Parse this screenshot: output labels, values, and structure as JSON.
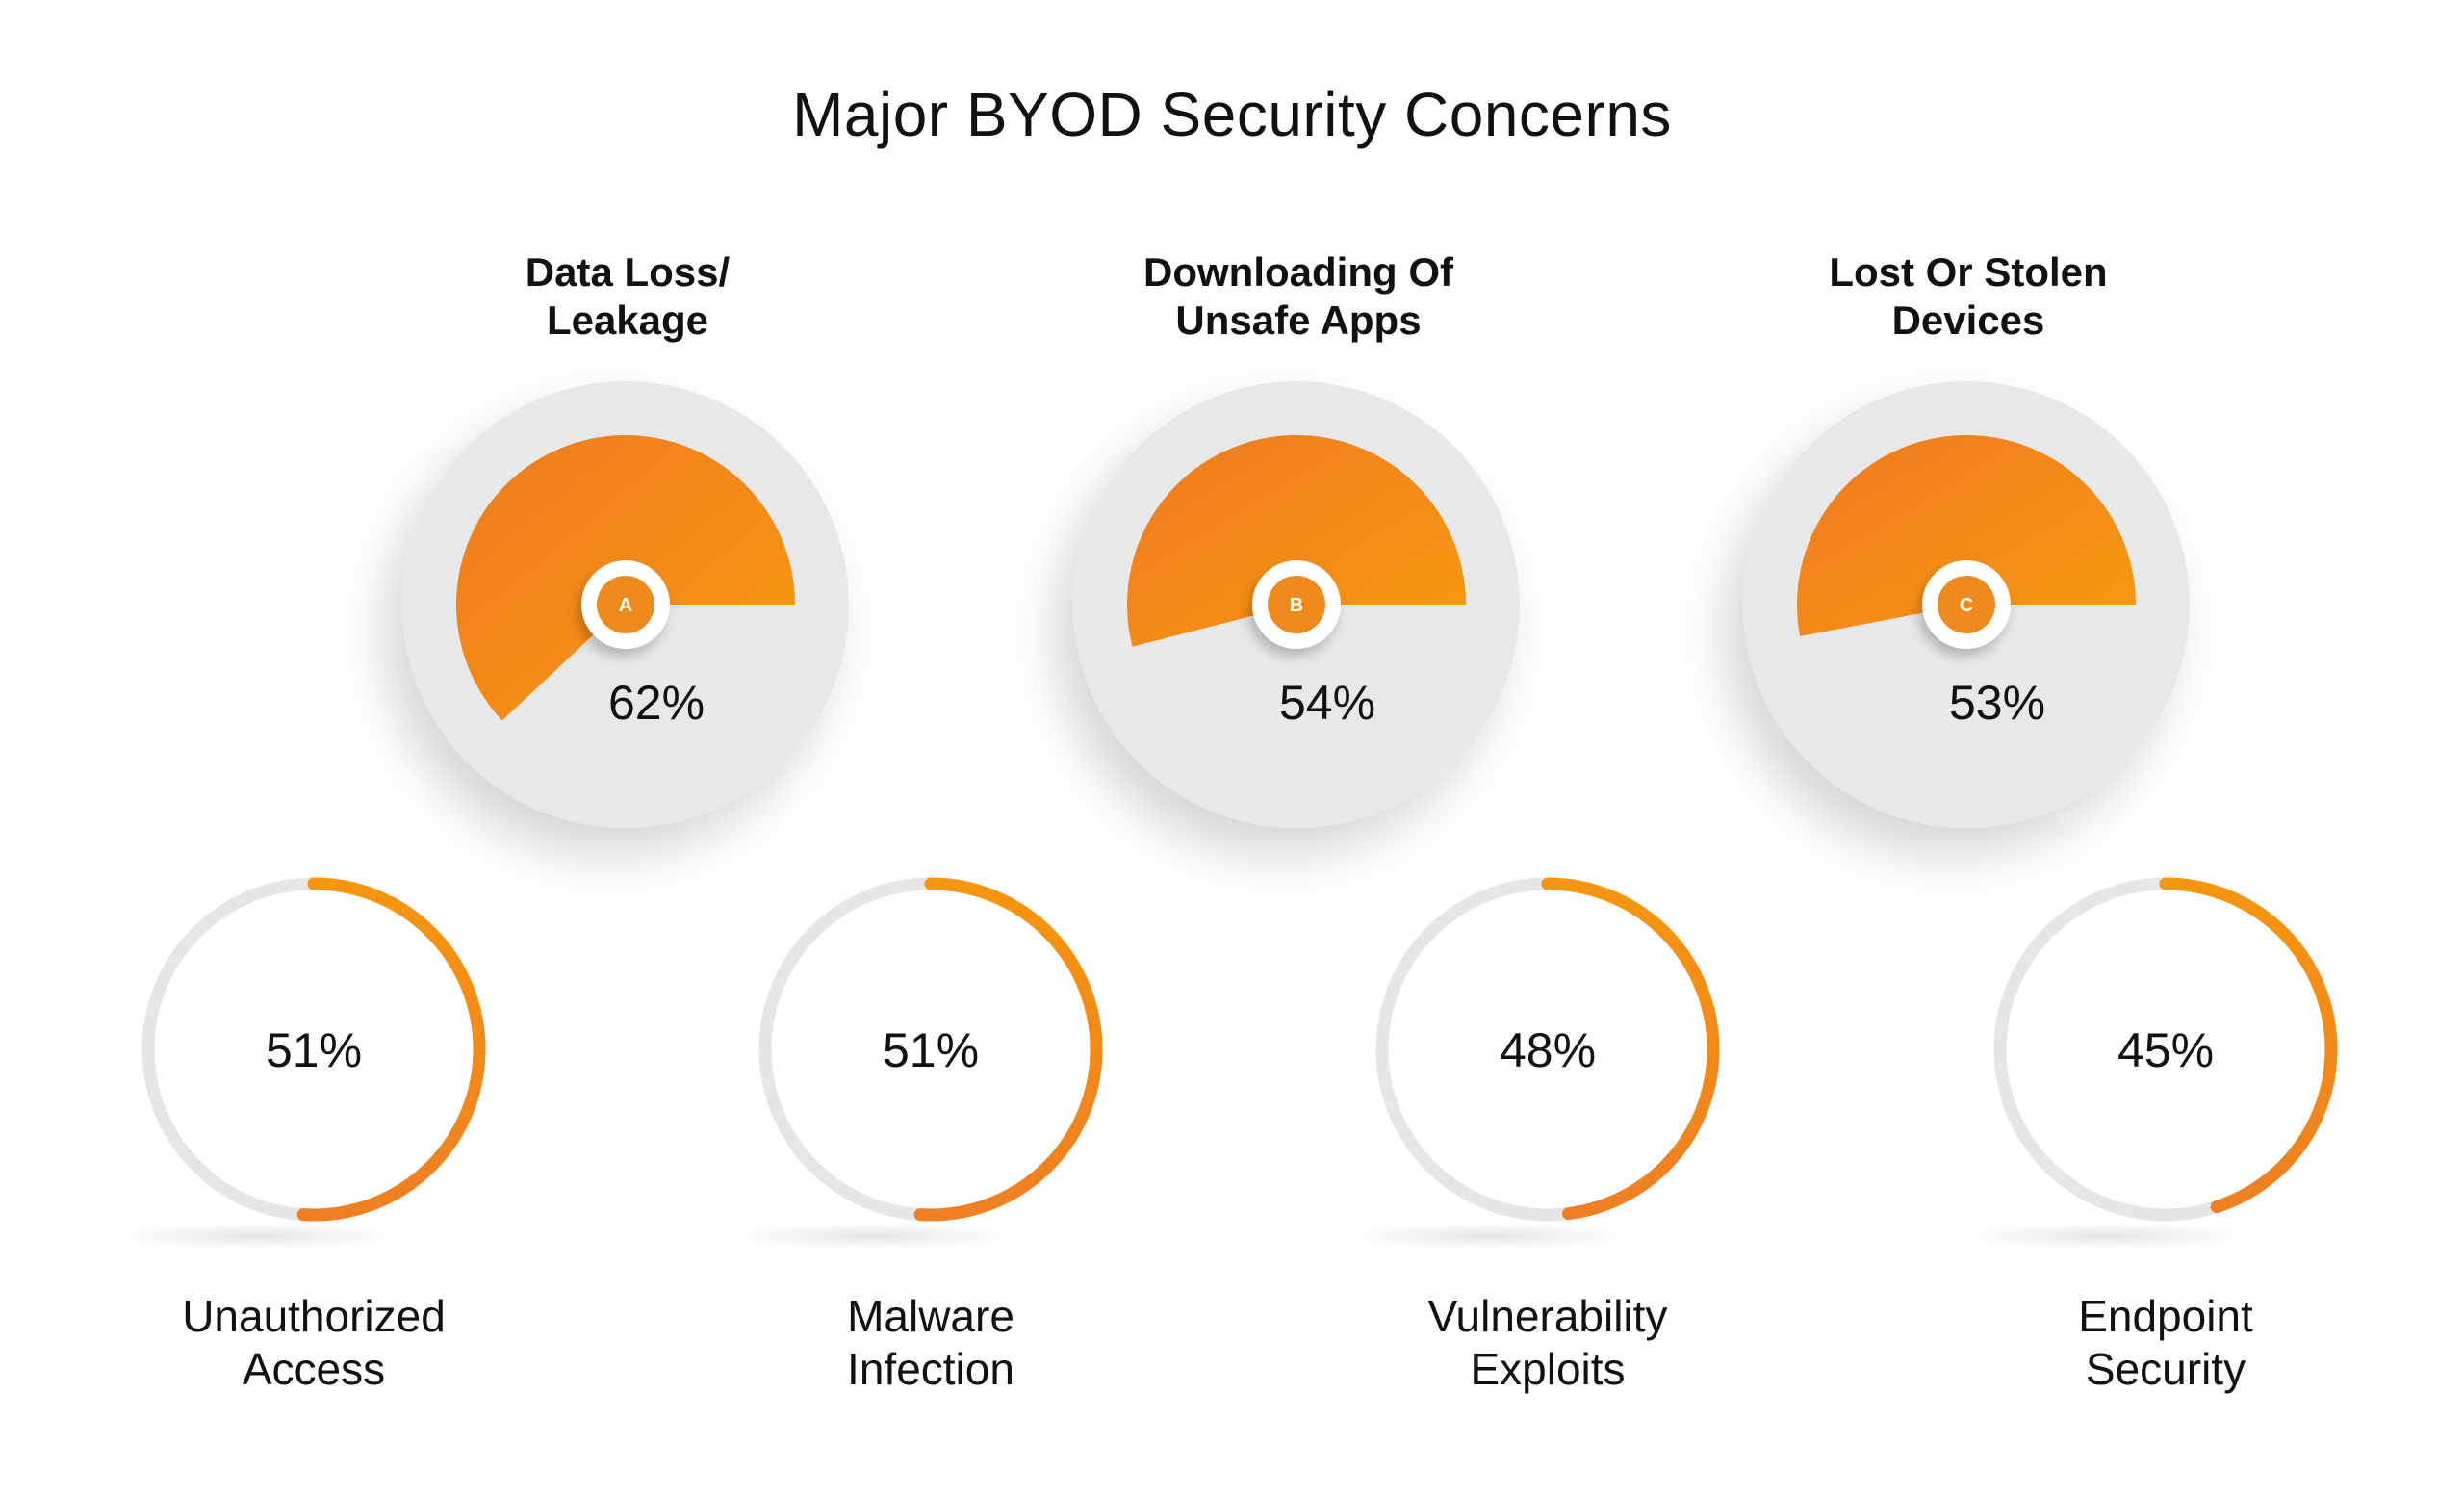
{
  "title": "Major BYOD Security Concerns",
  "colors": {
    "accent": "#F08A1C",
    "accent_dark": "#EE7F22",
    "accent_light": "#F7950F",
    "disc": "#E8E8E8",
    "ring_track": "#E6E6E6",
    "text": "#111111",
    "background": "#FFFFFF"
  },
  "gauges": [
    {
      "letter": "A",
      "title_lines": [
        "Data Loss/",
        "Leakage"
      ],
      "value": 62,
      "label": "62%"
    },
    {
      "letter": "B",
      "title_lines": [
        "Downloading Of",
        "Unsafe Apps"
      ],
      "value": 54,
      "label": "54%"
    },
    {
      "letter": "C",
      "title_lines": [
        "Lost Or Stolen",
        "Devices"
      ],
      "value": 53,
      "label": "53%"
    }
  ],
  "rings": [
    {
      "label_lines": [
        "Unauthorized",
        "Access"
      ],
      "value": 51,
      "label": "51%"
    },
    {
      "label_lines": [
        "Malware",
        "Infection"
      ],
      "value": 51,
      "label": "51%"
    },
    {
      "label_lines": [
        "Vulnerability",
        "Exploits"
      ],
      "value": 48,
      "label": "48%"
    },
    {
      "label_lines": [
        "Endpoint",
        "Security"
      ],
      "value": 45,
      "label": "45%"
    }
  ],
  "chart_data": {
    "type": "pie",
    "title": "Major BYOD Security Concerns",
    "categories": [
      "Data Loss/ Leakage",
      "Downloading Of Unsafe Apps",
      "Lost Or Stolen Devices",
      "Unauthorized Access",
      "Malware Infection",
      "Vulnerability Exploits",
      "Endpoint Security"
    ],
    "values": [
      62,
      54,
      53,
      51,
      51,
      48,
      45
    ],
    "unit": "%"
  }
}
